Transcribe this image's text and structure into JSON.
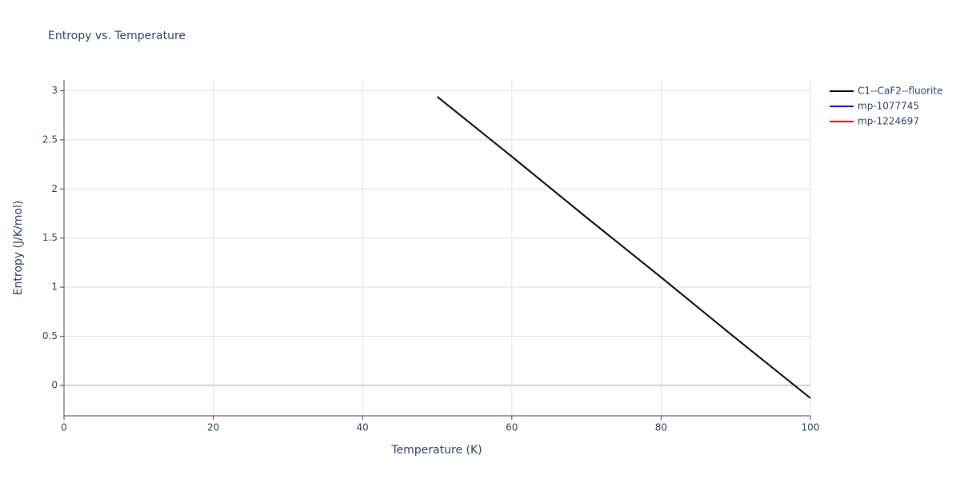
{
  "chart_data": {
    "type": "line",
    "title": "Entropy vs. Temperature",
    "x_label": "Temperature (K)",
    "y_label": "Entropy (J/K/mol)",
    "x": [
      50,
      60,
      70,
      80,
      90,
      100
    ],
    "series": [
      {
        "name": "C1--CaF2--fluorite",
        "color": "#000000",
        "values": [
          2.94,
          2.33,
          1.71,
          1.1,
          0.48,
          -0.13
        ]
      },
      {
        "name": "mp-1077745",
        "color": "#0000ff",
        "values": [
          null,
          null,
          null,
          null,
          null,
          null
        ]
      },
      {
        "name": "mp-1224697",
        "color": "#ff0000",
        "values": [
          null,
          null,
          null,
          null,
          null,
          null
        ]
      }
    ],
    "xlim": [
      0,
      100
    ],
    "xticks": [
      0,
      20,
      40,
      60,
      80,
      100
    ],
    "ylim": [
      -0.31,
      3.11
    ],
    "yticks": [
      0,
      0.5,
      1,
      1.5,
      2,
      2.5,
      3
    ],
    "grid": true,
    "legend": "right"
  }
}
